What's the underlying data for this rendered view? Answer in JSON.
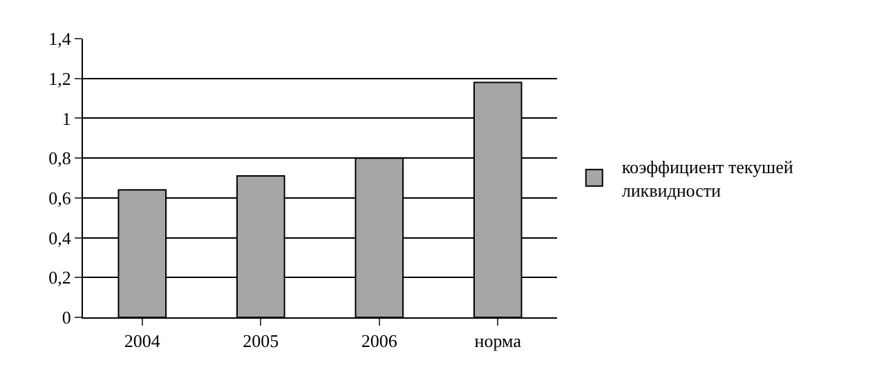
{
  "chart_data": {
    "type": "bar",
    "categories": [
      "2004",
      "2005",
      "2006",
      "норма"
    ],
    "series": [
      {
        "name": "коэффициент текушей ликвидности",
        "color": "#a6a6a6",
        "values": [
          0.64,
          0.71,
          0.8,
          1.18
        ]
      }
    ],
    "ylim": [
      0,
      1.4
    ],
    "yticks": [
      {
        "value": 0,
        "label": "0"
      },
      {
        "value": 0.2,
        "label": "0,2"
      },
      {
        "value": 0.4,
        "label": "0,4"
      },
      {
        "value": 0.6,
        "label": "0,6"
      },
      {
        "value": 0.8,
        "label": "0,8"
      },
      {
        "value": 1,
        "label": "1"
      },
      {
        "value": 1.2,
        "label": "1,2"
      },
      {
        "value": 1.4,
        "label": "1,4"
      }
    ],
    "grid": "y",
    "legend": "right"
  }
}
